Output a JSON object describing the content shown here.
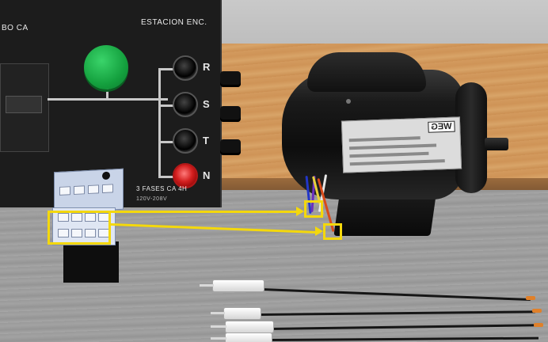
{
  "panel": {
    "title_left": "BO CA",
    "title_right": "ESTACION ENC.",
    "label_phases": "3 FASES CA 4H",
    "label_voltage": "120V-208V",
    "terminals": [
      "R",
      "S",
      "T",
      "N"
    ]
  },
  "motor": {
    "brand": "WEG"
  },
  "colors": {
    "highlight": "#f4d80c",
    "terminal_neutral": "#d42020",
    "indicator": "#14a03e"
  },
  "icons": {
    "indicator": "green-indicator-lamp-icon",
    "terminal": "banana-jack-icon",
    "probe": "test-probe-icon"
  }
}
